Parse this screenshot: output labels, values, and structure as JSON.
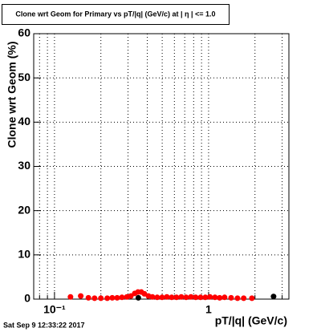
{
  "chart_data": {
    "type": "scatter",
    "title": "Clone wrt Geom for Primary vs pT/|q| (GeV/c) at |  η | <= 1.0",
    "xlabel": "pT/|q| (GeV/c)",
    "ylabel": "Clone wrt Geom (%)",
    "footer": "Sat Sep  9 12:33:22 2017",
    "xscale": "log",
    "xlim": [
      0.0733,
      3.32
    ],
    "ylim": [
      0,
      60
    ],
    "xticks": [
      {
        "value": 0.1,
        "label": "10⁻¹"
      },
      1
    ],
    "xminor": [
      0.08,
      0.09,
      0.2,
      0.3,
      0.4,
      0.5,
      0.6,
      0.7,
      0.8,
      0.9,
      2,
      3
    ],
    "yticks": [
      0,
      10,
      20,
      30,
      40,
      50,
      60
    ],
    "grid": true,
    "series": [
      {
        "color": "#000000",
        "x": [
          0.35,
          2.64
        ],
        "values": [
          0.3,
          0.6
        ]
      },
      {
        "color": "#ff0000",
        "x": [
          0.127,
          0.148,
          0.166,
          0.182,
          0.2,
          0.22,
          0.237,
          0.255,
          0.274,
          0.295,
          0.313,
          0.332,
          0.348,
          0.366,
          0.383,
          0.407,
          0.432,
          0.464,
          0.499,
          0.536,
          0.576,
          0.619,
          0.665,
          0.715,
          0.768,
          0.825,
          0.887,
          0.953,
          1.02,
          1.1,
          1.18,
          1.27,
          1.4,
          1.54,
          1.69,
          1.91
        ],
        "values": [
          0.5,
          0.7,
          0.3,
          0.2,
          0.2,
          0.2,
          0.3,
          0.3,
          0.4,
          0.5,
          0.7,
          1.3,
          1.6,
          1.6,
          1.2,
          0.7,
          0.5,
          0.4,
          0.4,
          0.5,
          0.4,
          0.4,
          0.5,
          0.4,
          0.5,
          0.4,
          0.4,
          0.4,
          0.5,
          0.4,
          0.3,
          0.4,
          0.3,
          0.2,
          0.2,
          0.2
        ]
      }
    ]
  }
}
